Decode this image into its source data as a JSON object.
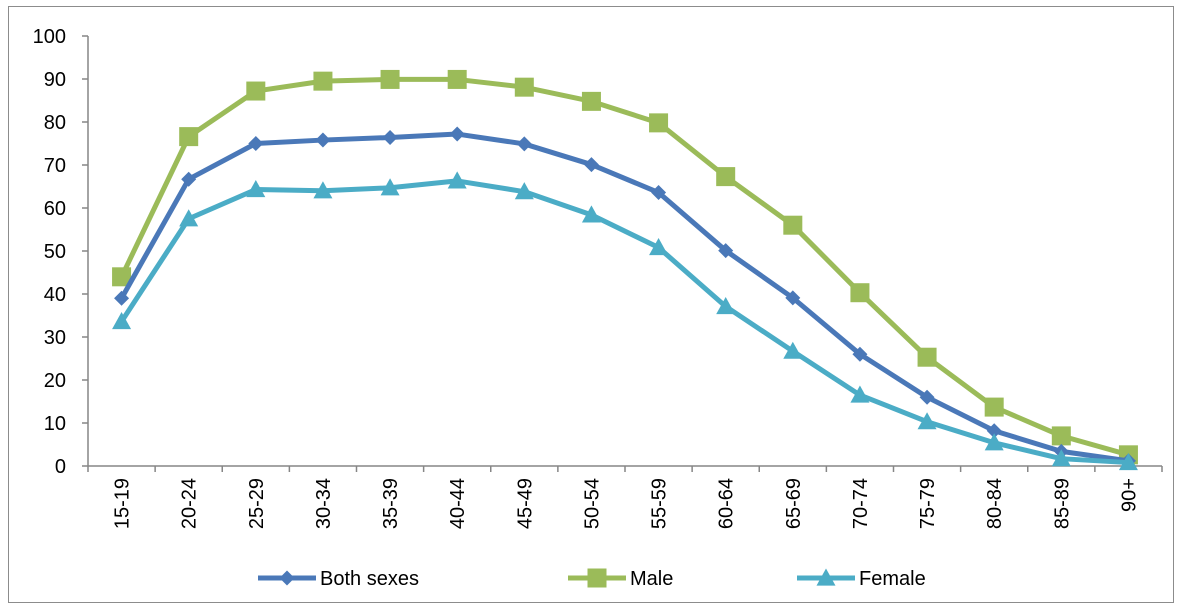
{
  "chart_data": {
    "type": "line",
    "title": "",
    "xlabel": "",
    "ylabel": "",
    "ylim": [
      0,
      100
    ],
    "ytick_step": 10,
    "grid": false,
    "legend_position": "bottom",
    "categories": [
      "15-19",
      "20-24",
      "25-29",
      "30-34",
      "35-39",
      "40-44",
      "45-49",
      "50-54",
      "55-59",
      "60-64",
      "65-69",
      "70-74",
      "75-79",
      "80-84",
      "85-89",
      "90+"
    ],
    "series": [
      {
        "name": "Both sexes",
        "color": "#4a78b8",
        "marker": "diamond",
        "values": [
          39,
          66.7,
          75,
          75.8,
          76.4,
          77.2,
          74.9,
          70.1,
          63.6,
          50.1,
          39.1,
          26,
          16,
          8.2,
          3.4,
          1.2
        ]
      },
      {
        "name": "Male",
        "color": "#9bbb59",
        "marker": "square",
        "values": [
          44,
          76.6,
          87.2,
          89.5,
          89.9,
          89.9,
          88.1,
          84.8,
          79.8,
          67.3,
          56,
          40.3,
          25.3,
          13.7,
          7,
          2.6
        ]
      },
      {
        "name": "Female",
        "color": "#4bacc6",
        "marker": "triangle",
        "values": [
          33.6,
          57.5,
          64.3,
          64,
          64.7,
          66.3,
          63.8,
          58.4,
          50.8,
          37.1,
          26.7,
          16.5,
          10.3,
          5.4,
          1.7,
          0.8
        ]
      }
    ]
  }
}
